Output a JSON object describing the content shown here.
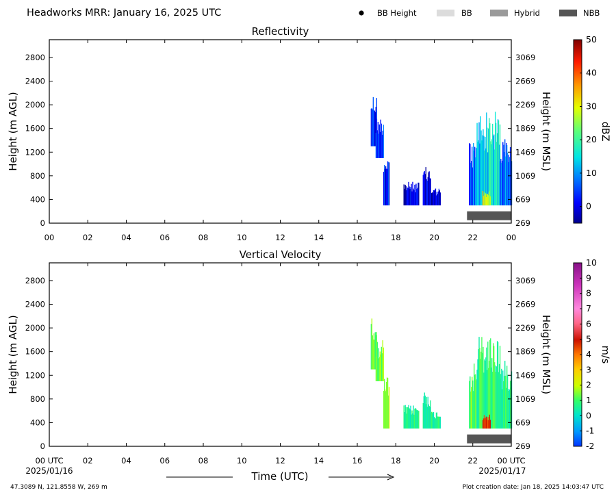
{
  "header": {
    "title": "Headworks MRR:  January 16, 2025 UTC",
    "legend": {
      "bb_height": "BB Height",
      "bb": "BB",
      "hybrid": "Hybrid",
      "nbb": "NBB"
    },
    "legend_colors": {
      "bb": "#dcdcdc",
      "hybrid": "#9a9a9a",
      "nbb": "#555555"
    }
  },
  "footer": {
    "time_label": "Time (UTC)",
    "start_date": "2025/01/16",
    "end_date": "2025/01/17",
    "location": "47.3089 N, 121.8558 W, 269 m",
    "creation": "Plot creation date: Jan 18, 2025 14:03:47 UTC"
  },
  "chart_data": [
    {
      "type": "heatmap",
      "title": "Reflectivity",
      "ylabel": "Height (m AGL)",
      "ylabel_right": "Height (m MSL)",
      "colorbar_label": "dBZ",
      "ylim": [
        0,
        3100
      ],
      "xlim": [
        0,
        24
      ],
      "xticks": [
        "00",
        "02",
        "04",
        "06",
        "08",
        "10",
        "12",
        "14",
        "16",
        "18",
        "20",
        "22",
        "00"
      ],
      "yticks": [
        0,
        400,
        800,
        1200,
        1600,
        2000,
        2400,
        2800
      ],
      "yticks_right": [
        "269",
        "669",
        "1069",
        "1469",
        "1869",
        "2269",
        "2669",
        "3069"
      ],
      "colorbar": {
        "min": -5,
        "max": 50,
        "ticks": [
          0,
          10,
          20,
          30,
          40,
          50
        ]
      },
      "nbb_band": {
        "x": [
          21.7,
          24
        ],
        "y": [
          50,
          200
        ]
      },
      "echo_regions": [
        {
          "x": [
            16.7,
            17.0
          ],
          "y": [
            1300,
            2200
          ],
          "value": 2
        },
        {
          "x": [
            16.95,
            17.35
          ],
          "y": [
            1100,
            1800
          ],
          "value": 4
        },
        {
          "x": [
            17.35,
            17.65
          ],
          "y": [
            300,
            1200
          ],
          "value": 3
        },
        {
          "x": [
            18.4,
            19.2
          ],
          "y": [
            300,
            700
          ],
          "value": -1
        },
        {
          "x": [
            19.4,
            19.8
          ],
          "y": [
            300,
            950
          ],
          "value": -2
        },
        {
          "x": [
            19.8,
            20.3
          ],
          "y": [
            300,
            600
          ],
          "value": -1
        },
        {
          "x": [
            21.8,
            22.2
          ],
          "y": [
            300,
            1400
          ],
          "value": 6
        },
        {
          "x": [
            22.2,
            23.4
          ],
          "y": [
            300,
            1900
          ],
          "value": 14
        },
        {
          "x": [
            23.4,
            24.0
          ],
          "y": [
            300,
            1450
          ],
          "value": 8
        },
        {
          "x": [
            22.5,
            22.9
          ],
          "y": [
            300,
            550
          ],
          "value": 28
        }
      ]
    },
    {
      "type": "heatmap",
      "title": "Vertical Velocity",
      "ylabel": "Height (m AGL)",
      "ylabel_right": "Height (m MSL)",
      "colorbar_label": "m/s",
      "ylim": [
        0,
        3100
      ],
      "xlim": [
        0,
        24
      ],
      "xticks": [
        "00 UTC",
        "02",
        "04",
        "06",
        "08",
        "10",
        "12",
        "14",
        "16",
        "18",
        "20",
        "22",
        "00 UTC"
      ],
      "yticks": [
        0,
        400,
        800,
        1200,
        1600,
        2000,
        2400,
        2800
      ],
      "yticks_right": [
        "269",
        "669",
        "1069",
        "1469",
        "1869",
        "2269",
        "2669",
        "3069"
      ],
      "colorbar": {
        "min": -2,
        "max": 10,
        "ticks": [
          -2,
          -1,
          0,
          1,
          2,
          3,
          4,
          5,
          6,
          7,
          8,
          9,
          10
        ]
      },
      "nbb_band": {
        "x": [
          21.7,
          24
        ],
        "y": [
          50,
          200
        ]
      },
      "echo_regions": [
        {
          "x": [
            16.7,
            17.0
          ],
          "y": [
            1300,
            2200
          ],
          "value": 1.2
        },
        {
          "x": [
            16.95,
            17.35
          ],
          "y": [
            1100,
            1800
          ],
          "value": 1.4
        },
        {
          "x": [
            17.35,
            17.65
          ],
          "y": [
            300,
            1200
          ],
          "value": 1.8
        },
        {
          "x": [
            18.4,
            19.2
          ],
          "y": [
            300,
            700
          ],
          "value": 0.6
        },
        {
          "x": [
            19.4,
            19.8
          ],
          "y": [
            300,
            950
          ],
          "value": 0.3
        },
        {
          "x": [
            19.8,
            20.3
          ],
          "y": [
            300,
            600
          ],
          "value": 0.7
        },
        {
          "x": [
            21.8,
            22.2
          ],
          "y": [
            300,
            1400
          ],
          "value": 1.3
        },
        {
          "x": [
            22.2,
            23.4
          ],
          "y": [
            300,
            1900
          ],
          "value": 0.8
        },
        {
          "x": [
            23.4,
            24.0
          ],
          "y": [
            300,
            1450
          ],
          "value": 0.6
        },
        {
          "x": [
            22.5,
            22.9
          ],
          "y": [
            300,
            550
          ],
          "value": 4.5
        }
      ]
    }
  ]
}
